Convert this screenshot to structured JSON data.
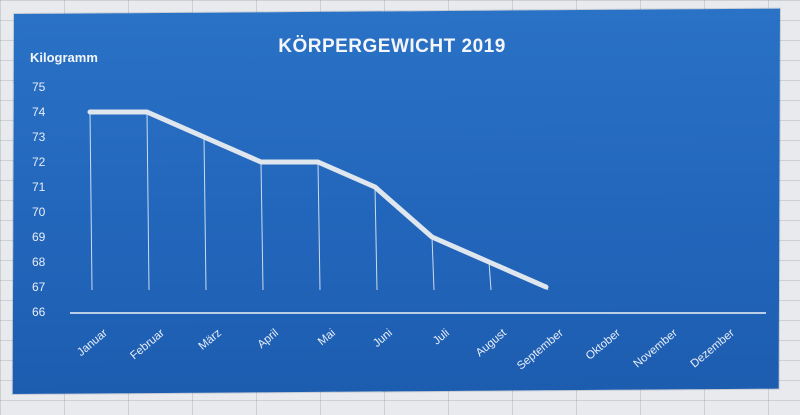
{
  "chart_data": {
    "type": "line",
    "title": "KÖRPERGEWICHT 2019",
    "ylabel": "Kilogramm",
    "xlabel": "",
    "ylim": [
      66,
      75
    ],
    "yticks": [
      66,
      67,
      68,
      69,
      70,
      71,
      72,
      73,
      74,
      75
    ],
    "categories": [
      "Januar",
      "Februar",
      "März",
      "April",
      "Mai",
      "Juni",
      "Juli",
      "August",
      "September",
      "Oktober",
      "November",
      "Dezember"
    ],
    "series": [
      {
        "values": [
          74,
          74,
          73,
          72,
          72,
          71,
          69,
          68,
          67,
          null,
          null,
          null
        ]
      }
    ],
    "drop_lines": true,
    "grid": false,
    "colors": {
      "background": "#2266bb",
      "line": "#dfe6ee",
      "text": "#f4f6fa"
    }
  }
}
